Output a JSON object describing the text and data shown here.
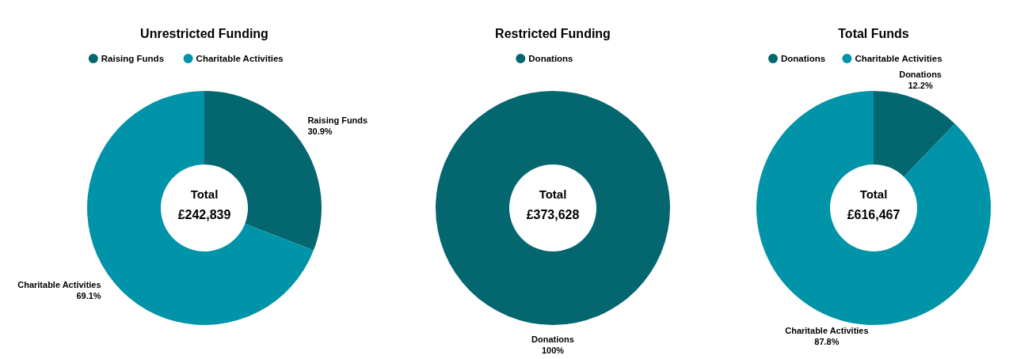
{
  "chart_data": [
    {
      "type": "donut",
      "title": "Unrestricted Funding",
      "categories": [
        "Raising Funds",
        "Charitable Activities"
      ],
      "values": [
        30.9,
        69.1
      ],
      "value_labels": [
        "30.9%",
        "69.1%"
      ],
      "colors": [
        "#04666f",
        "#0193a8"
      ],
      "legend": "top",
      "annotations": [
        "Total",
        "£242,839"
      ]
    },
    {
      "type": "donut",
      "title": "Restricted Funding",
      "categories": [
        "Donations"
      ],
      "values": [
        100
      ],
      "value_labels": [
        "100%"
      ],
      "colors": [
        "#04666f"
      ],
      "legend": "top",
      "annotations": [
        "Total",
        "£373,628"
      ]
    },
    {
      "type": "donut",
      "title": "Total Funds",
      "categories": [
        "Donations",
        "Charitable Activities"
      ],
      "values": [
        12.2,
        87.8
      ],
      "value_labels": [
        "12.2%",
        "87.8%"
      ],
      "colors": [
        "#04666f",
        "#0193a8"
      ],
      "legend": "top",
      "annotations": [
        "Total",
        "£616,467"
      ]
    }
  ]
}
